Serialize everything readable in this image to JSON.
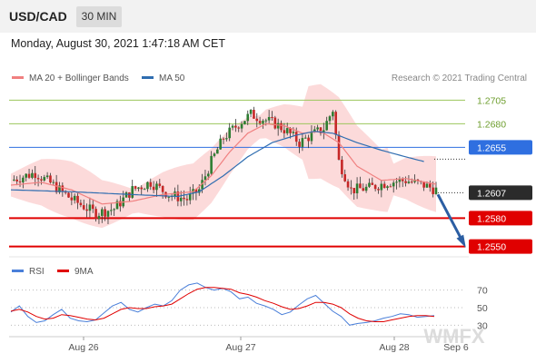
{
  "header": {
    "symbol": "USD/CAD",
    "timeframe": "30 MIN"
  },
  "datetime": "Monday, August 30, 2021 1:47:18 AM CET",
  "legend": {
    "ma20": "MA 20 + Bollinger Bands",
    "ma50": "MA 50",
    "copyright": "Research © 2021 Trading Central"
  },
  "watermark": "WMFX",
  "colors": {
    "resistance": "#9cc65c",
    "pivot": "#2f6fe0",
    "support": "#e00000",
    "ma20": "#f08080",
    "ma50": "#2f6db0",
    "bands": "#fbd4d4",
    "bull": "#2e7d32",
    "bear": "#c62828",
    "arrow": "#2b5ea3",
    "rsi": "#4a7fd9",
    "rsi_ma": "#e00000"
  },
  "chart_data": [
    {
      "type": "candlestick",
      "title": "USD/CAD 30 MIN",
      "x_ticks": [
        "Aug 26",
        "Aug 27",
        "Aug 28",
        "Sep 6"
      ],
      "ylim": [
        1.254,
        1.2715
      ],
      "last_price": 1.2607,
      "levels": [
        {
          "value": 1.2705,
          "label": "1.2705",
          "kind": "resistance"
        },
        {
          "value": 1.268,
          "label": "1.2680",
          "kind": "resistance"
        },
        {
          "value": 1.2655,
          "label": "1.2655",
          "kind": "pivot"
        },
        {
          "value": 1.258,
          "label": "1.2580",
          "kind": "support"
        },
        {
          "value": 1.255,
          "label": "1.2550",
          "kind": "support"
        }
      ],
      "price_path": [
        [
          0,
          1.262
        ],
        [
          8,
          1.2628
        ],
        [
          14,
          1.2615
        ],
        [
          20,
          1.26
        ],
        [
          28,
          1.2585
        ],
        [
          34,
          1.259
        ],
        [
          40,
          1.261
        ],
        [
          46,
          1.2618
        ],
        [
          52,
          1.2605
        ],
        [
          58,
          1.26
        ],
        [
          62,
          1.261
        ],
        [
          66,
          1.264
        ],
        [
          70,
          1.2665
        ],
        [
          75,
          1.268
        ],
        [
          79,
          1.269
        ],
        [
          83,
          1.2685
        ],
        [
          87,
          1.268
        ],
        [
          91,
          1.2672
        ],
        [
          95,
          1.266
        ],
        [
          99,
          1.2668
        ],
        [
          103,
          1.2675
        ],
        [
          106,
          1.2695
        ],
        [
          108,
          1.264
        ],
        [
          112,
          1.261
        ],
        [
          118,
          1.2612
        ],
        [
          124,
          1.2618
        ],
        [
          130,
          1.262
        ],
        [
          136,
          1.2615
        ],
        [
          140,
          1.261
        ]
      ],
      "ma20_path": [
        [
          0,
          1.2615
        ],
        [
          10,
          1.2618
        ],
        [
          20,
          1.261
        ],
        [
          30,
          1.2595
        ],
        [
          40,
          1.2598
        ],
        [
          50,
          1.2605
        ],
        [
          60,
          1.2608
        ],
        [
          66,
          1.2625
        ],
        [
          72,
          1.265
        ],
        [
          78,
          1.267
        ],
        [
          84,
          1.268
        ],
        [
          90,
          1.2678
        ],
        [
          96,
          1.267
        ],
        [
          102,
          1.2672
        ],
        [
          108,
          1.266
        ],
        [
          114,
          1.2635
        ],
        [
          122,
          1.262
        ],
        [
          130,
          1.2622
        ],
        [
          140,
          1.2616
        ]
      ],
      "ma50_path": [
        [
          0,
          1.261
        ],
        [
          20,
          1.2608
        ],
        [
          40,
          1.2605
        ],
        [
          55,
          1.2603
        ],
        [
          62,
          1.2608
        ],
        [
          70,
          1.2625
        ],
        [
          78,
          1.2645
        ],
        [
          86,
          1.266
        ],
        [
          94,
          1.2668
        ],
        [
          100,
          1.2672
        ],
        [
          106,
          1.267
        ],
        [
          114,
          1.266
        ],
        [
          122,
          1.2652
        ],
        [
          130,
          1.2645
        ],
        [
          136,
          1.264
        ]
      ],
      "forecast_arrow": {
        "from": 1.2607,
        "to": 1.255
      }
    },
    {
      "type": "line",
      "title": "RSI",
      "series": [
        {
          "name": "RSI",
          "values": [
            45,
            52,
            40,
            33,
            35,
            42,
            48,
            38,
            35,
            34,
            36,
            44,
            52,
            56,
            48,
            45,
            50,
            54,
            52,
            58,
            70,
            76,
            78,
            73,
            70,
            72,
            68,
            60,
            62,
            55,
            52,
            48,
            42,
            45,
            53,
            60,
            64,
            55,
            46,
            40,
            30,
            32,
            33,
            35,
            38,
            40,
            43,
            42,
            39,
            40,
            41
          ]
        },
        {
          "name": "9MA",
          "values": [
            46,
            48,
            45,
            40,
            37,
            38,
            42,
            41,
            39,
            37,
            36,
            38,
            43,
            48,
            50,
            49,
            49,
            51,
            52,
            54,
            60,
            66,
            71,
            73,
            73,
            72,
            71,
            67,
            65,
            62,
            58,
            55,
            51,
            48,
            49,
            52,
            56,
            56,
            54,
            50,
            43,
            38,
            35,
            34,
            34,
            36,
            38,
            40,
            41,
            41,
            40
          ]
        }
      ],
      "y_ticks": [
        30,
        50,
        70
      ],
      "ylim": [
        20,
        80
      ]
    }
  ]
}
